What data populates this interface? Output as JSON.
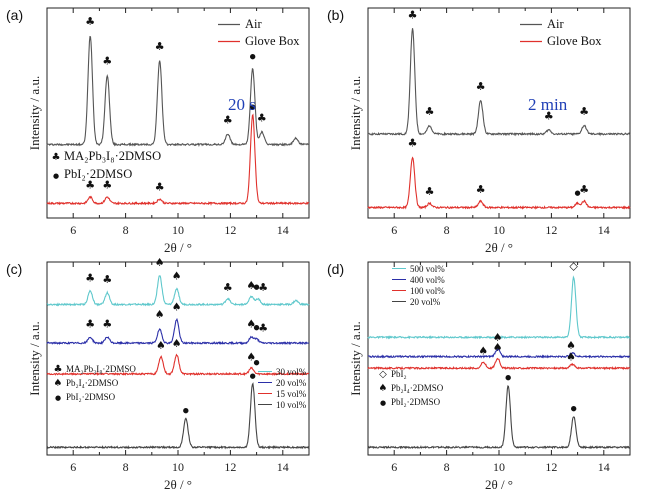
{
  "chart_data": [
    {
      "panel": "(a)",
      "type": "line",
      "annotation": "20 s",
      "xlabel": "2θ / °",
      "ylabel": "Intensity / a.u.",
      "xlim": [
        5,
        15
      ],
      "xticks": [
        "6",
        "8",
        "10",
        "12",
        "14"
      ],
      "legend": [
        "Air",
        "Glove Box"
      ],
      "legend_placement": "top-right",
      "marker_legend": [
        "MA₂Pb₃I₈·2DMSO",
        "PbI₂·2DMSO"
      ],
      "series": [
        {
          "name": "Air",
          "color": "#555555",
          "baseline": 0.35,
          "peaks": [
            [
              6.65,
              0.52
            ],
            [
              7.3,
              0.33
            ],
            [
              9.3,
              0.4
            ],
            [
              11.9,
              0.05
            ],
            [
              12.85,
              0.36
            ],
            [
              13.2,
              0.06
            ],
            [
              14.5,
              0.03
            ]
          ]
        },
        {
          "name": "Glove Box",
          "color": "#e0312c",
          "baseline": 0.07,
          "peaks": [
            [
              6.65,
              0.03
            ],
            [
              7.3,
              0.03
            ],
            [
              9.3,
              0.02
            ],
            [
              12.85,
              0.42
            ]
          ]
        }
      ],
      "markers": [
        {
          "x": 6.65,
          "y": 0.92,
          "m": "club"
        },
        {
          "x": 7.3,
          "y": 0.73,
          "m": "club"
        },
        {
          "x": 9.3,
          "y": 0.8,
          "m": "club"
        },
        {
          "x": 11.9,
          "y": 0.45,
          "m": "club"
        },
        {
          "x": 12.85,
          "y": 0.76,
          "m": "dot"
        },
        {
          "x": 13.2,
          "y": 0.46,
          "m": "club"
        },
        {
          "x": 6.65,
          "y": 0.14,
          "m": "club"
        },
        {
          "x": 7.3,
          "y": 0.14,
          "m": "club"
        },
        {
          "x": 9.3,
          "y": 0.13,
          "m": "club"
        },
        {
          "x": 12.85,
          "y": 0.52,
          "m": "dot"
        }
      ]
    },
    {
      "panel": "(b)",
      "type": "line",
      "annotation": "2 min",
      "xlabel": "2θ / °",
      "ylabel": "Intensity / a.u.",
      "xlim": [
        5,
        15
      ],
      "xticks": [
        "6",
        "8",
        "10",
        "12",
        "14"
      ],
      "legend": [
        "Air",
        "Glove Box"
      ],
      "legend_placement": "top-right",
      "series": [
        {
          "name": "Air",
          "color": "#555555",
          "baseline": 0.4,
          "peaks": [
            [
              6.7,
              0.5
            ],
            [
              7.35,
              0.04
            ],
            [
              9.3,
              0.16
            ],
            [
              11.9,
              0.02
            ],
            [
              13.25,
              0.04
            ]
          ]
        },
        {
          "name": "Glove Box",
          "color": "#e0312c",
          "baseline": 0.05,
          "peaks": [
            [
              6.7,
              0.24
            ],
            [
              7.35,
              0.02
            ],
            [
              9.3,
              0.03
            ],
            [
              13.0,
              0.02
            ],
            [
              13.25,
              0.03
            ]
          ]
        }
      ],
      "markers": [
        {
          "x": 6.7,
          "y": 0.95,
          "m": "club"
        },
        {
          "x": 7.35,
          "y": 0.49,
          "m": "club"
        },
        {
          "x": 9.3,
          "y": 0.61,
          "m": "club"
        },
        {
          "x": 11.9,
          "y": 0.47,
          "m": "club"
        },
        {
          "x": 13.25,
          "y": 0.49,
          "m": "club"
        },
        {
          "x": 6.7,
          "y": 0.34,
          "m": "club"
        },
        {
          "x": 7.35,
          "y": 0.11,
          "m": "club"
        },
        {
          "x": 9.3,
          "y": 0.12,
          "m": "club"
        },
        {
          "x": 13.0,
          "y": 0.11,
          "m": "dot"
        },
        {
          "x": 13.25,
          "y": 0.12,
          "m": "club"
        }
      ]
    },
    {
      "panel": "(c)",
      "type": "line",
      "xlabel": "2θ / °",
      "ylabel": "Intensity / a.u.",
      "xlim": [
        5,
        15
      ],
      "xticks": [
        "6",
        "8",
        "10",
        "12",
        "14"
      ],
      "legend": [
        "30 vol%",
        "20 vol%",
        "15 vol%",
        "10 vol%"
      ],
      "legend_placement": "bottom-right",
      "marker_legend": [
        "MA₂Pb₃I₈·2DMSO",
        "Pb₂I₄·2DMSO",
        "PbI₂·2DMSO"
      ],
      "series": [
        {
          "name": "30 vol%",
          "color": "#5fc8cc",
          "baseline": 0.78,
          "peaks": [
            [
              6.65,
              0.07
            ],
            [
              7.3,
              0.06
            ],
            [
              9.3,
              0.15
            ],
            [
              9.95,
              0.08
            ],
            [
              11.9,
              0.03
            ],
            [
              12.8,
              0.04
            ],
            [
              13.05,
              0.03
            ],
            [
              14.5,
              0.02
            ]
          ]
        },
        {
          "name": "20 vol%",
          "color": "#2b2fa8",
          "baseline": 0.58,
          "peaks": [
            [
              6.65,
              0.03
            ],
            [
              7.3,
              0.03
            ],
            [
              9.3,
              0.07
            ],
            [
              9.95,
              0.12
            ],
            [
              12.8,
              0.03
            ],
            [
              13.0,
              0.02
            ]
          ]
        },
        {
          "name": "15 vol%",
          "color": "#e0312c",
          "baseline": 0.42,
          "peaks": [
            [
              9.35,
              0.09
            ],
            [
              9.95,
              0.1
            ],
            [
              12.8,
              0.03
            ]
          ]
        },
        {
          "name": "10 vol%",
          "color": "#444444",
          "baseline": 0.04,
          "peaks": [
            [
              10.3,
              0.15
            ],
            [
              12.85,
              0.33
            ]
          ]
        }
      ],
      "markers": [
        {
          "x": 6.65,
          "y": 0.9,
          "m": "club"
        },
        {
          "x": 7.3,
          "y": 0.89,
          "m": "club"
        },
        {
          "x": 9.3,
          "y": 0.98,
          "m": "spade"
        },
        {
          "x": 9.95,
          "y": 0.91,
          "m": "spade"
        },
        {
          "x": 11.9,
          "y": 0.85,
          "m": "club"
        },
        {
          "x": 12.8,
          "y": 0.86,
          "m": "spade"
        },
        {
          "x": 13.0,
          "y": 0.86,
          "m": "dot"
        },
        {
          "x": 13.25,
          "y": 0.85,
          "m": "club"
        },
        {
          "x": 6.65,
          "y": 0.66,
          "m": "club"
        },
        {
          "x": 7.3,
          "y": 0.66,
          "m": "club"
        },
        {
          "x": 9.3,
          "y": 0.71,
          "m": "spade"
        },
        {
          "x": 9.95,
          "y": 0.75,
          "m": "spade"
        },
        {
          "x": 12.8,
          "y": 0.66,
          "m": "spade"
        },
        {
          "x": 13.0,
          "y": 0.65,
          "m": "dot"
        },
        {
          "x": 13.25,
          "y": 0.64,
          "m": "club"
        },
        {
          "x": 9.35,
          "y": 0.55,
          "m": "spade"
        },
        {
          "x": 9.95,
          "y": 0.56,
          "m": "spade"
        },
        {
          "x": 12.8,
          "y": 0.49,
          "m": "spade"
        },
        {
          "x": 13.0,
          "y": 0.47,
          "m": "dot"
        },
        {
          "x": 10.3,
          "y": 0.22,
          "m": "dot"
        },
        {
          "x": 12.85,
          "y": 0.4,
          "m": "dot"
        }
      ]
    },
    {
      "panel": "(d)",
      "type": "line",
      "xlabel": "2θ / °",
      "ylabel": "Intensity / a.u.",
      "xlim": [
        5,
        15
      ],
      "xticks": [
        "6",
        "8",
        "10",
        "12",
        "14"
      ],
      "legend": [
        "500 vol%",
        "400 vol%",
        "100 vol%",
        "20 vol%"
      ],
      "legend_placement": "top-left",
      "marker_legend": [
        "PbI₂",
        "Pb₂I₄·2DMSO",
        "PbI₂·2DMSO"
      ],
      "series": [
        {
          "name": "500 vol%",
          "color": "#5fc8cc",
          "baseline": 0.61,
          "peaks": [
            [
              12.85,
              0.31
            ]
          ]
        },
        {
          "name": "400 vol%",
          "color": "#2b2fa8",
          "baseline": 0.51,
          "peaks": [
            [
              9.95,
              0.04
            ],
            [
              12.8,
              0.02
            ]
          ]
        },
        {
          "name": "100 vol%",
          "color": "#e0312c",
          "baseline": 0.45,
          "peaks": [
            [
              9.4,
              0.03
            ],
            [
              9.95,
              0.05
            ],
            [
              12.8,
              0.02
            ]
          ]
        },
        {
          "name": "20 vol%",
          "color": "#444444",
          "baseline": 0.04,
          "peaks": [
            [
              10.35,
              0.32
            ],
            [
              12.85,
              0.16
            ]
          ]
        }
      ],
      "markers": [
        {
          "x": 12.85,
          "y": 0.96,
          "m": "diamond"
        },
        {
          "x": 9.95,
          "y": 0.59,
          "m": "spade"
        },
        {
          "x": 12.75,
          "y": 0.55,
          "m": "spade"
        },
        {
          "x": 9.4,
          "y": 0.52,
          "m": "spade"
        },
        {
          "x": 9.95,
          "y": 0.54,
          "m": "spade"
        },
        {
          "x": 12.75,
          "y": 0.49,
          "m": "spade"
        },
        {
          "x": 10.35,
          "y": 0.39,
          "m": "dot"
        },
        {
          "x": 12.85,
          "y": 0.23,
          "m": "dot"
        }
      ]
    }
  ]
}
